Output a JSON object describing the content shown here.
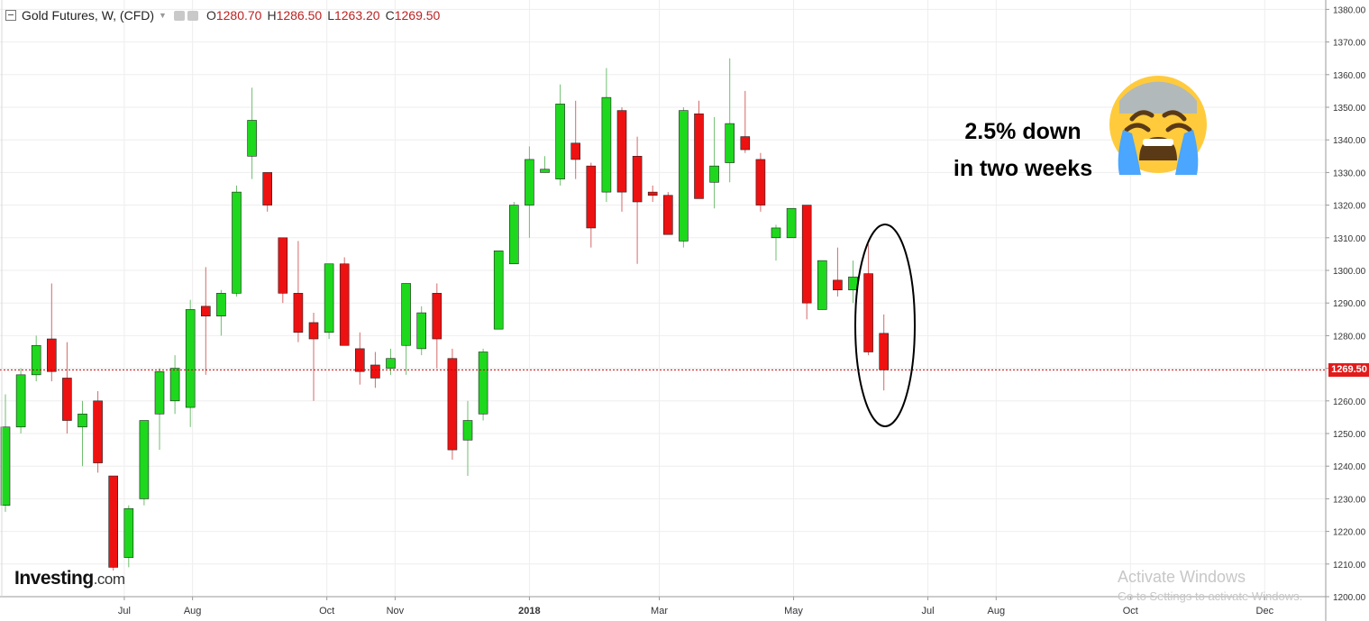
{
  "header": {
    "title": "Gold Futures, W, (CFD)",
    "ohlc": [
      {
        "key": "O",
        "value": "1280.70"
      },
      {
        "key": "H",
        "value": "1286.50"
      },
      {
        "key": "L",
        "value": "1263.20"
      },
      {
        "key": "C",
        "value": "1269.50"
      }
    ]
  },
  "logo": {
    "main": "Investing",
    "suffix": ".com"
  },
  "annotation": {
    "line1": "2.5% down",
    "line2": "in two weeks",
    "emoji": "crying-face"
  },
  "watermark": {
    "line1": "Activate Windows",
    "line2": "Go to Settings to activate Windows."
  },
  "colors": {
    "up": "#1ed81e",
    "down": "#ee1111",
    "price_line": "#cc0000",
    "price_tag": "#e31b1b",
    "grid": "#eeeeee"
  },
  "chart_data": {
    "type": "candlestick",
    "title": "Gold Futures, W, (CFD)",
    "timeframe": "weekly",
    "ylim": [
      1200,
      1382
    ],
    "y_ticks": [
      "1200.00",
      "1210.00",
      "1220.00",
      "1230.00",
      "1240.00",
      "1250.00",
      "1260.00",
      "1270.00",
      "1280.00",
      "1290.00",
      "1300.00",
      "1310.00",
      "1320.00",
      "1330.00",
      "1340.00",
      "1350.00",
      "1360.00",
      "1370.00",
      "1380.00"
    ],
    "x_labels": [
      {
        "label": "Jul",
        "date": "2017-07-01"
      },
      {
        "label": "Aug",
        "date": "2017-08-01"
      },
      {
        "label": "Oct",
        "date": "2017-10-01"
      },
      {
        "label": "Nov",
        "date": "2017-11-01"
      },
      {
        "label": "2018",
        "date": "2018-01-01"
      },
      {
        "label": "Mar",
        "date": "2018-03-01"
      },
      {
        "label": "May",
        "date": "2018-05-01"
      },
      {
        "label": "Jul",
        "date": "2018-07-01"
      },
      {
        "label": "Aug",
        "date": "2018-08-01"
      },
      {
        "label": "Oct",
        "date": "2018-10-01"
      },
      {
        "label": "Dec",
        "date": "2018-12-01"
      }
    ],
    "last_price": "1269.50",
    "candles": [
      {
        "date": "2017-05-08",
        "o": 1228,
        "h": 1262,
        "l": 1226,
        "c": 1252
      },
      {
        "date": "2017-05-15",
        "o": 1252,
        "h": 1270,
        "l": 1250,
        "c": 1268
      },
      {
        "date": "2017-05-22",
        "o": 1268,
        "h": 1280,
        "l": 1266,
        "c": 1277
      },
      {
        "date": "2017-05-29",
        "o": 1279,
        "h": 1296,
        "l": 1266,
        "c": 1269
      },
      {
        "date": "2017-06-05",
        "o": 1267,
        "h": 1278,
        "l": 1250,
        "c": 1254
      },
      {
        "date": "2017-06-12",
        "o": 1252,
        "h": 1260,
        "l": 1240,
        "c": 1256
      },
      {
        "date": "2017-06-19",
        "o": 1260,
        "h": 1263,
        "l": 1238,
        "c": 1241
      },
      {
        "date": "2017-06-26",
        "o": 1237,
        "h": 1237,
        "l": 1208,
        "c": 1209
      },
      {
        "date": "2017-07-03",
        "o": 1212,
        "h": 1228,
        "l": 1209,
        "c": 1227
      },
      {
        "date": "2017-07-10",
        "o": 1230,
        "h": 1254,
        "l": 1228,
        "c": 1254
      },
      {
        "date": "2017-07-17",
        "o": 1256,
        "h": 1270,
        "l": 1245,
        "c": 1269
      },
      {
        "date": "2017-07-24",
        "o": 1260,
        "h": 1274,
        "l": 1256,
        "c": 1270
      },
      {
        "date": "2017-07-31",
        "o": 1258,
        "h": 1291,
        "l": 1252,
        "c": 1288
      },
      {
        "date": "2017-08-07",
        "o": 1289,
        "h": 1301,
        "l": 1268,
        "c": 1286
      },
      {
        "date": "2017-08-14",
        "o": 1286,
        "h": 1294,
        "l": 1280,
        "c": 1293
      },
      {
        "date": "2017-08-21",
        "o": 1293,
        "h": 1326,
        "l": 1292,
        "c": 1324
      },
      {
        "date": "2017-08-28",
        "o": 1335,
        "h": 1356,
        "l": 1328,
        "c": 1346
      },
      {
        "date": "2017-09-04",
        "o": 1330,
        "h": 1330,
        "l": 1318,
        "c": 1320
      },
      {
        "date": "2017-09-11",
        "o": 1310,
        "h": 1310,
        "l": 1290,
        "c": 1293
      },
      {
        "date": "2017-09-18",
        "o": 1293,
        "h": 1309,
        "l": 1278,
        "c": 1281
      },
      {
        "date": "2017-09-25",
        "o": 1284,
        "h": 1287,
        "l": 1260,
        "c": 1279
      },
      {
        "date": "2017-10-02",
        "o": 1281,
        "h": 1302,
        "l": 1279,
        "c": 1302
      },
      {
        "date": "2017-10-09",
        "o": 1302,
        "h": 1304,
        "l": 1277,
        "c": 1277
      },
      {
        "date": "2017-10-16",
        "o": 1276,
        "h": 1281,
        "l": 1265,
        "c": 1269
      },
      {
        "date": "2017-10-23",
        "o": 1271,
        "h": 1275,
        "l": 1264,
        "c": 1267
      },
      {
        "date": "2017-10-30",
        "o": 1270,
        "h": 1276,
        "l": 1268,
        "c": 1273
      },
      {
        "date": "2017-11-06",
        "o": 1277,
        "h": 1296,
        "l": 1268,
        "c": 1296
      },
      {
        "date": "2017-11-13",
        "o": 1276,
        "h": 1289,
        "l": 1274,
        "c": 1287
      },
      {
        "date": "2017-11-20",
        "o": 1293,
        "h": 1296,
        "l": 1270,
        "c": 1279
      },
      {
        "date": "2017-11-27",
        "o": 1273,
        "h": 1276,
        "l": 1242,
        "c": 1245
      },
      {
        "date": "2017-12-04",
        "o": 1248,
        "h": 1260,
        "l": 1237,
        "c": 1254
      },
      {
        "date": "2017-12-11",
        "o": 1256,
        "h": 1276,
        "l": 1254,
        "c": 1275
      },
      {
        "date": "2017-12-18",
        "o": 1282,
        "h": 1306,
        "l": 1282,
        "c": 1306
      },
      {
        "date": "2017-12-25",
        "o": 1302,
        "h": 1321,
        "l": 1302,
        "c": 1320
      },
      {
        "date": "2018-01-01",
        "o": 1320,
        "h": 1338,
        "l": 1310,
        "c": 1334
      },
      {
        "date": "2018-01-08",
        "o": 1330,
        "h": 1335,
        "l": 1330,
        "c": 1331
      },
      {
        "date": "2018-01-15",
        "o": 1328,
        "h": 1357,
        "l": 1326,
        "c": 1351
      },
      {
        "date": "2018-01-22",
        "o": 1339,
        "h": 1352,
        "l": 1328,
        "c": 1334
      },
      {
        "date": "2018-01-29",
        "o": 1332,
        "h": 1333,
        "l": 1307,
        "c": 1313
      },
      {
        "date": "2018-02-05",
        "o": 1324,
        "h": 1362,
        "l": 1321,
        "c": 1353
      },
      {
        "date": "2018-02-12",
        "o": 1349,
        "h": 1350,
        "l": 1318,
        "c": 1324
      },
      {
        "date": "2018-02-19",
        "o": 1335,
        "h": 1341,
        "l": 1302,
        "c": 1321
      },
      {
        "date": "2018-02-26",
        "o": 1324,
        "h": 1326,
        "l": 1321,
        "c": 1323
      },
      {
        "date": "2018-03-05",
        "o": 1323,
        "h": 1324,
        "l": 1311,
        "c": 1311
      },
      {
        "date": "2018-03-12",
        "o": 1309,
        "h": 1350,
        "l": 1307,
        "c": 1349
      },
      {
        "date": "2018-03-19",
        "o": 1348,
        "h": 1352,
        "l": 1322,
        "c": 1322
      },
      {
        "date": "2018-03-26",
        "o": 1327,
        "h": 1347,
        "l": 1319,
        "c": 1332
      },
      {
        "date": "2018-04-02",
        "o": 1333,
        "h": 1365,
        "l": 1327,
        "c": 1345
      },
      {
        "date": "2018-04-09",
        "o": 1341,
        "h": 1355,
        "l": 1336,
        "c": 1337
      },
      {
        "date": "2018-04-16",
        "o": 1334,
        "h": 1336,
        "l": 1318,
        "c": 1320
      },
      {
        "date": "2018-04-23",
        "o": 1310,
        "h": 1314,
        "l": 1303,
        "c": 1313
      },
      {
        "date": "2018-04-30",
        "o": 1310,
        "h": 1319,
        "l": 1310,
        "c": 1319
      },
      {
        "date": "2018-05-07",
        "o": 1320,
        "h": 1320,
        "l": 1285,
        "c": 1290
      },
      {
        "date": "2018-05-14",
        "o": 1288,
        "h": 1303,
        "l": 1288,
        "c": 1303
      },
      {
        "date": "2018-05-21",
        "o": 1297,
        "h": 1307,
        "l": 1292,
        "c": 1294
      },
      {
        "date": "2018-05-28",
        "o": 1294,
        "h": 1303,
        "l": 1290,
        "c": 1298
      },
      {
        "date": "2018-06-04",
        "o": 1299,
        "h": 1308,
        "l": 1274,
        "c": 1275
      },
      {
        "date": "2018-06-11",
        "o": 1280.7,
        "h": 1286.5,
        "l": 1263.2,
        "c": 1269.5
      }
    ]
  }
}
